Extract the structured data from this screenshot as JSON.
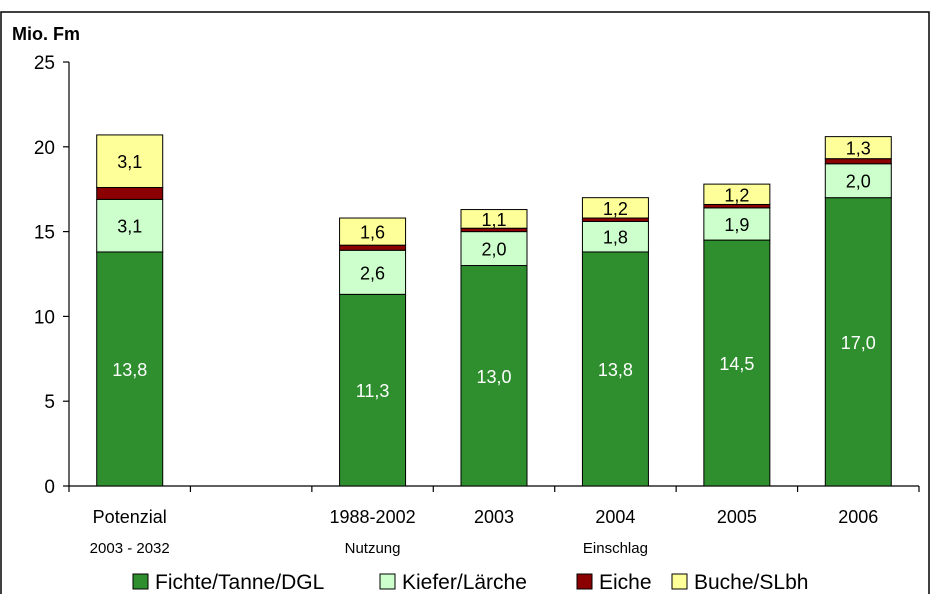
{
  "colors": {
    "fichte": "#2f8f2f",
    "kiefer": "#ccffcc",
    "eiche": "#8b0000",
    "buche": "#ffff99",
    "edge": "#000000"
  },
  "chart_data": {
    "type": "bar",
    "stacked": true,
    "unit_label": "Mio. Fm",
    "ylim": [
      0,
      25
    ],
    "yticks": [
      "0",
      "5",
      "10",
      "15",
      "20",
      "25"
    ],
    "categories": [
      "Potenzial",
      "",
      "1988-2002",
      "2003",
      "2004",
      "2005",
      "2006"
    ],
    "category_sublabels": [
      "2003 - 2032",
      "",
      "",
      "",
      "",
      "",
      ""
    ],
    "group_labels": [
      "Nutzung",
      "Einschlag"
    ],
    "series": [
      {
        "name": "Fichte/Tanne/DGL",
        "color": "#2f8f2f",
        "values": [
          13.8,
          null,
          11.3,
          13.0,
          13.8,
          14.5,
          17.0
        ],
        "labels": [
          "13,8",
          "",
          "11,3",
          "13,0",
          "13,8",
          "14,5",
          "17,0"
        ]
      },
      {
        "name": "Kiefer/Lärche",
        "color": "#ccffcc",
        "values": [
          3.1,
          null,
          2.6,
          2.0,
          1.8,
          1.9,
          2.0
        ],
        "labels": [
          "3,1",
          "",
          "2,6",
          "2,0",
          "1,8",
          "1,9",
          "2,0"
        ]
      },
      {
        "name": "Eiche",
        "color": "#8b0000",
        "values": [
          0.7,
          null,
          0.3,
          0.2,
          0.2,
          0.2,
          0.3
        ],
        "labels": [
          "",
          "",
          "",
          "",
          "",
          "",
          ""
        ]
      },
      {
        "name": "Buche/SLbh",
        "color": "#ffff99",
        "values": [
          3.1,
          null,
          1.6,
          1.1,
          1.2,
          1.2,
          1.3
        ],
        "labels": [
          "3,1",
          "",
          "1,6",
          "1,1",
          "1,2",
          "1,2",
          "1,3"
        ]
      }
    ],
    "legend_position": "bottom",
    "grid": false
  }
}
